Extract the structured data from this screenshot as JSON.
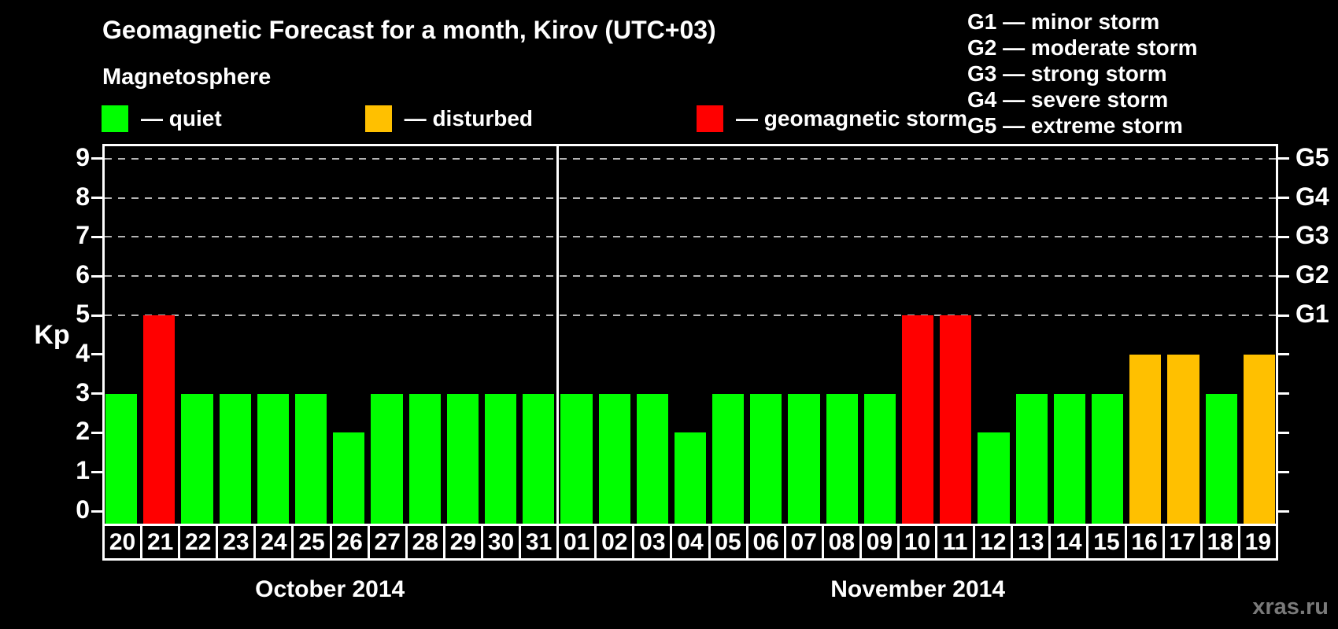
{
  "title": "Geomagnetic Forecast for a month, Kirov (UTC+03)",
  "subtitle": "Magnetosphere",
  "watermark": "xras.ru",
  "kp_axis_title": "Kp",
  "legend": {
    "items": [
      {
        "state": "quiet",
        "label": "— quiet",
        "color": "#00ff00"
      },
      {
        "state": "disturbed",
        "label": "— disturbed",
        "color": "#ffc000"
      },
      {
        "state": "storm",
        "label": "— geomagnetic storm",
        "color": "#ff0000"
      }
    ]
  },
  "g_scale_legend": [
    "G1 — minor storm",
    "G2 — moderate storm",
    "G3 — strong storm",
    "G4 — severe storm",
    "G5 — extreme storm"
  ],
  "chart_data": {
    "type": "bar",
    "title": "Geomagnetic Forecast for a month, Kirov (UTC+03)",
    "subtitle": "Magnetosphere",
    "ylabel": "Kp",
    "ylim": [
      0,
      9
    ],
    "yticks": [
      0,
      1,
      2,
      3,
      4,
      5,
      6,
      7,
      8,
      9
    ],
    "grid": "dashed horizontal at Kp 5-9 only",
    "right_axis": {
      "labels": [
        "G1",
        "G2",
        "G3",
        "G4",
        "G5"
      ],
      "at_kp": [
        5,
        6,
        7,
        8,
        9
      ]
    },
    "state_colors": {
      "quiet": "#00ff00",
      "disturbed": "#ffc000",
      "storm": "#ff0000"
    },
    "sections": [
      {
        "label": "October 2014",
        "days": 12
      },
      {
        "label": "November 2014",
        "days": 19
      }
    ],
    "points": [
      {
        "day": "20",
        "month": "October 2014",
        "kp": 3,
        "state": "quiet"
      },
      {
        "day": "21",
        "month": "October 2014",
        "kp": 5,
        "state": "storm"
      },
      {
        "day": "22",
        "month": "October 2014",
        "kp": 3,
        "state": "quiet"
      },
      {
        "day": "23",
        "month": "October 2014",
        "kp": 3,
        "state": "quiet"
      },
      {
        "day": "24",
        "month": "October 2014",
        "kp": 3,
        "state": "quiet"
      },
      {
        "day": "25",
        "month": "October 2014",
        "kp": 3,
        "state": "quiet"
      },
      {
        "day": "26",
        "month": "October 2014",
        "kp": 2,
        "state": "quiet"
      },
      {
        "day": "27",
        "month": "October 2014",
        "kp": 3,
        "state": "quiet"
      },
      {
        "day": "28",
        "month": "October 2014",
        "kp": 3,
        "state": "quiet"
      },
      {
        "day": "29",
        "month": "October 2014",
        "kp": 3,
        "state": "quiet"
      },
      {
        "day": "30",
        "month": "October 2014",
        "kp": 3,
        "state": "quiet"
      },
      {
        "day": "31",
        "month": "October 2014",
        "kp": 3,
        "state": "quiet"
      },
      {
        "day": "01",
        "month": "November 2014",
        "kp": 3,
        "state": "quiet"
      },
      {
        "day": "02",
        "month": "November 2014",
        "kp": 3,
        "state": "quiet"
      },
      {
        "day": "03",
        "month": "November 2014",
        "kp": 3,
        "state": "quiet"
      },
      {
        "day": "04",
        "month": "November 2014",
        "kp": 2,
        "state": "quiet"
      },
      {
        "day": "05",
        "month": "November 2014",
        "kp": 3,
        "state": "quiet"
      },
      {
        "day": "06",
        "month": "November 2014",
        "kp": 3,
        "state": "quiet"
      },
      {
        "day": "07",
        "month": "November 2014",
        "kp": 3,
        "state": "quiet"
      },
      {
        "day": "08",
        "month": "November 2014",
        "kp": 3,
        "state": "quiet"
      },
      {
        "day": "09",
        "month": "November 2014",
        "kp": 3,
        "state": "quiet"
      },
      {
        "day": "10",
        "month": "November 2014",
        "kp": 5,
        "state": "storm"
      },
      {
        "day": "11",
        "month": "November 2014",
        "kp": 5,
        "state": "storm"
      },
      {
        "day": "12",
        "month": "November 2014",
        "kp": 2,
        "state": "quiet"
      },
      {
        "day": "13",
        "month": "November 2014",
        "kp": 3,
        "state": "quiet"
      },
      {
        "day": "14",
        "month": "November 2014",
        "kp": 3,
        "state": "quiet"
      },
      {
        "day": "15",
        "month": "November 2014",
        "kp": 3,
        "state": "quiet"
      },
      {
        "day": "16",
        "month": "November 2014",
        "kp": 4,
        "state": "disturbed"
      },
      {
        "day": "17",
        "month": "November 2014",
        "kp": 4,
        "state": "disturbed"
      },
      {
        "day": "18",
        "month": "November 2014",
        "kp": 3,
        "state": "quiet"
      },
      {
        "day": "19",
        "month": "November 2014",
        "kp": 4,
        "state": "disturbed"
      }
    ]
  }
}
